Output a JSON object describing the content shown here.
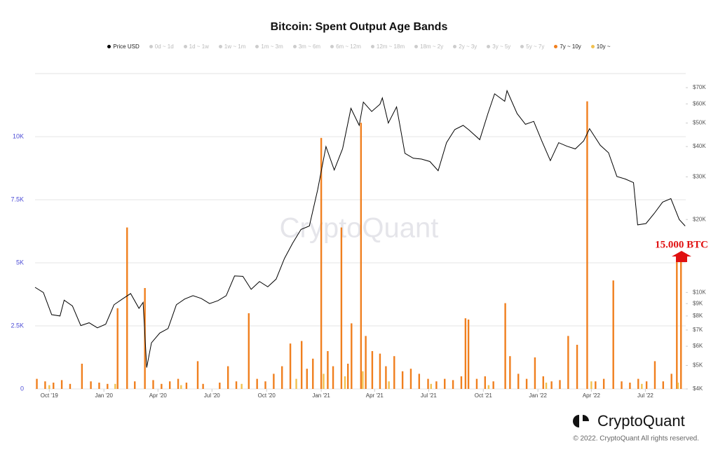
{
  "chart_data": {
    "type": "bar-line",
    "title": "Bitcoin: Spent Output Age Bands",
    "annotation": "15.000 BTC",
    "watermark": "CryptoQuant",
    "xlim": [
      "2019-09-07",
      "2022-09-07"
    ],
    "xticks": [
      {
        "value": "2019-10-01",
        "label": "Oct '19"
      },
      {
        "value": "2020-01-01",
        "label": "Jan '20"
      },
      {
        "value": "2020-04-01",
        "label": "Apr '20"
      },
      {
        "value": "2020-07-01",
        "label": "Jul '20"
      },
      {
        "value": "2020-10-01",
        "label": "Oct '20"
      },
      {
        "value": "2021-01-01",
        "label": "Jan '21"
      },
      {
        "value": "2021-04-01",
        "label": "Apr '21"
      },
      {
        "value": "2021-07-01",
        "label": "Jul '21"
      },
      {
        "value": "2021-10-01",
        "label": "Oct '21"
      },
      {
        "value": "2022-01-01",
        "label": "Jan '22"
      },
      {
        "value": "2022-04-01",
        "label": "Apr '22"
      },
      {
        "value": "2022-07-01",
        "label": "Jul '22"
      }
    ],
    "ylim": [
      0,
      12500
    ],
    "yticks": [
      0,
      {
        "value": 2500,
        "label": "2.5K"
      },
      {
        "value": 5000,
        "label": "5K"
      },
      {
        "value": 7500,
        "label": "7.5K"
      },
      {
        "value": 10000,
        "label": "10K"
      }
    ],
    "y2lim": [
      4000,
      80000
    ],
    "y2log": true,
    "y2ticks": [
      {
        "value": 4000,
        "label": "$4K"
      },
      {
        "value": 5000,
        "label": "$5K"
      },
      {
        "value": 6000,
        "label": "$6K"
      },
      {
        "value": 7000,
        "label": "$7K"
      },
      {
        "value": 8000,
        "label": "$8K"
      },
      {
        "value": 9000,
        "label": "$9K"
      },
      {
        "value": 10000,
        "label": "$10K"
      },
      {
        "value": 20000,
        "label": "$20K"
      },
      {
        "value": 30000,
        "label": "$30K"
      },
      {
        "value": 40000,
        "label": "$40K"
      },
      {
        "value": 50000,
        "label": "$50K"
      },
      {
        "value": 60000,
        "label": "$60K"
      },
      {
        "value": 70000,
        "label": "$70K"
      }
    ],
    "grid": true,
    "hidden_series": [
      "0d ~ 1d",
      "1d ~ 1w",
      "1w ~ 1m",
      "1m ~ 3m",
      "3m ~ 6m",
      "6m ~ 12m",
      "12m ~ 18m",
      "18m ~ 2y",
      "2y ~ 3y",
      "3y ~ 5y",
      "5y ~ 7y"
    ],
    "series": [
      {
        "name": "Price USD",
        "type": "line",
        "axis": "y2",
        "color": "#000000",
        "x": [
          "2019-09-07",
          "2019-09-21",
          "2019-10-05",
          "2019-10-19",
          "2019-10-26",
          "2019-11-09",
          "2019-11-23",
          "2019-12-07",
          "2019-12-21",
          "2020-01-04",
          "2020-01-18",
          "2020-02-01",
          "2020-02-15",
          "2020-02-29",
          "2020-03-07",
          "2020-03-13",
          "2020-03-21",
          "2020-04-04",
          "2020-04-18",
          "2020-05-02",
          "2020-05-16",
          "2020-05-30",
          "2020-06-13",
          "2020-06-27",
          "2020-07-11",
          "2020-07-25",
          "2020-08-08",
          "2020-08-22",
          "2020-09-05",
          "2020-09-19",
          "2020-10-03",
          "2020-10-17",
          "2020-10-31",
          "2020-11-14",
          "2020-11-28",
          "2020-12-12",
          "2020-12-26",
          "2021-01-09",
          "2021-01-23",
          "2021-02-06",
          "2021-02-20",
          "2021-03-06",
          "2021-03-13",
          "2021-03-27",
          "2021-04-10",
          "2021-04-14",
          "2021-04-24",
          "2021-05-08",
          "2021-05-22",
          "2021-06-05",
          "2021-06-19",
          "2021-07-03",
          "2021-07-17",
          "2021-07-31",
          "2021-08-14",
          "2021-08-28",
          "2021-09-07",
          "2021-09-25",
          "2021-10-09",
          "2021-10-20",
          "2021-11-06",
          "2021-11-10",
          "2021-11-27",
          "2021-12-11",
          "2021-12-25",
          "2022-01-08",
          "2022-01-22",
          "2022-02-05",
          "2022-02-19",
          "2022-03-05",
          "2022-03-19",
          "2022-03-29",
          "2022-04-16",
          "2022-04-30",
          "2022-05-14",
          "2022-05-28",
          "2022-06-11",
          "2022-06-18",
          "2022-07-02",
          "2022-07-16",
          "2022-07-30",
          "2022-08-13",
          "2022-08-27",
          "2022-09-06"
        ],
        "values": [
          10500,
          10000,
          8100,
          8000,
          9300,
          8800,
          7300,
          7500,
          7150,
          7400,
          8900,
          9400,
          9900,
          8600,
          9100,
          4900,
          6200,
          6800,
          7100,
          8900,
          9400,
          9700,
          9450,
          9000,
          9250,
          9700,
          11700,
          11650,
          10300,
          11100,
          10550,
          11350,
          13800,
          16000,
          18200,
          18800,
          26500,
          40000,
          32000,
          39200,
          57500,
          48900,
          61000,
          55800,
          59800,
          63500,
          50000,
          58300,
          37500,
          35800,
          35500,
          34700,
          31800,
          41500,
          47000,
          48900,
          46800,
          42700,
          54900,
          66000,
          61500,
          68000,
          54700,
          49400,
          50800,
          41900,
          35000,
          41500,
          40100,
          39100,
          42200,
          47400,
          40500,
          37700,
          30100,
          29400,
          28400,
          19000,
          19250,
          21200,
          23600,
          24400,
          20000,
          18800
        ]
      },
      {
        "name": "7y ~ 10y",
        "type": "bar",
        "color": "#f07f1e",
        "x": [
          "2019-09-10",
          "2019-09-24",
          "2019-10-08",
          "2019-10-22",
          "2019-11-05",
          "2019-11-25",
          "2019-12-10",
          "2019-12-24",
          "2020-01-07",
          "2020-01-24",
          "2020-02-09",
          "2020-02-22",
          "2020-03-10",
          "2020-03-24",
          "2020-04-07",
          "2020-04-21",
          "2020-05-05",
          "2020-05-19",
          "2020-06-07",
          "2020-06-16",
          "2020-07-14",
          "2020-07-28",
          "2020-08-11",
          "2020-09-01",
          "2020-09-15",
          "2020-09-29",
          "2020-10-13",
          "2020-10-27",
          "2020-11-10",
          "2020-11-29",
          "2020-12-08",
          "2020-12-18",
          "2021-01-01",
          "2021-01-12",
          "2021-01-21",
          "2021-02-04",
          "2021-02-15",
          "2021-02-21",
          "2021-03-09",
          "2021-03-17",
          "2021-03-28",
          "2021-04-10",
          "2021-04-20",
          "2021-05-04",
          "2021-05-18",
          "2021-06-01",
          "2021-06-15",
          "2021-06-30",
          "2021-07-14",
          "2021-07-28",
          "2021-08-11",
          "2021-08-25",
          "2021-09-01",
          "2021-09-06",
          "2021-09-20",
          "2021-10-04",
          "2021-10-18",
          "2021-11-07",
          "2021-11-15",
          "2021-11-29",
          "2021-12-13",
          "2021-12-27",
          "2022-01-10",
          "2022-01-24",
          "2022-02-07",
          "2022-02-21",
          "2022-03-08",
          "2022-03-25",
          "2022-04-08",
          "2022-04-22",
          "2022-05-08",
          "2022-05-22",
          "2022-06-05",
          "2022-06-19",
          "2022-07-03",
          "2022-07-17",
          "2022-07-31",
          "2022-08-14",
          "2022-08-23",
          "2022-08-30"
        ],
        "values": [
          400,
          300,
          250,
          350,
          200,
          1000,
          300,
          250,
          200,
          3200,
          6400,
          300,
          4000,
          350,
          200,
          300,
          400,
          250,
          1100,
          200,
          250,
          900,
          300,
          3000,
          400,
          300,
          600,
          900,
          1800,
          1900,
          800,
          1200,
          9950,
          1500,
          900,
          6400,
          1000,
          2600,
          10550,
          2100,
          1500,
          1400,
          900,
          1300,
          700,
          800,
          600,
          400,
          300,
          400,
          350,
          500,
          2800,
          2750,
          400,
          500,
          300,
          3400,
          1300,
          600,
          400,
          1250,
          500,
          300,
          350,
          2100,
          1750,
          11400,
          300,
          400,
          4300,
          300,
          250,
          400,
          300,
          1100,
          300,
          600,
          5050,
          5050
        ]
      },
      {
        "name": "10y ~",
        "type": "bar",
        "color": "#f2c14e",
        "x": [
          "2019-10-01",
          "2020-01-20",
          "2020-05-10",
          "2020-08-20",
          "2020-11-20",
          "2021-01-05",
          "2021-02-10",
          "2021-03-12",
          "2021-04-25",
          "2021-07-05",
          "2021-10-10",
          "2022-01-15",
          "2022-04-01",
          "2022-06-25",
          "2022-08-25"
        ],
        "values": [
          150,
          200,
          150,
          200,
          400,
          600,
          500,
          700,
          300,
          200,
          150,
          250,
          300,
          200,
          250
        ]
      }
    ]
  },
  "footer": {
    "brand": "CryptoQuant",
    "copyright": "© 2022. CryptoQuant All rights reserved."
  }
}
